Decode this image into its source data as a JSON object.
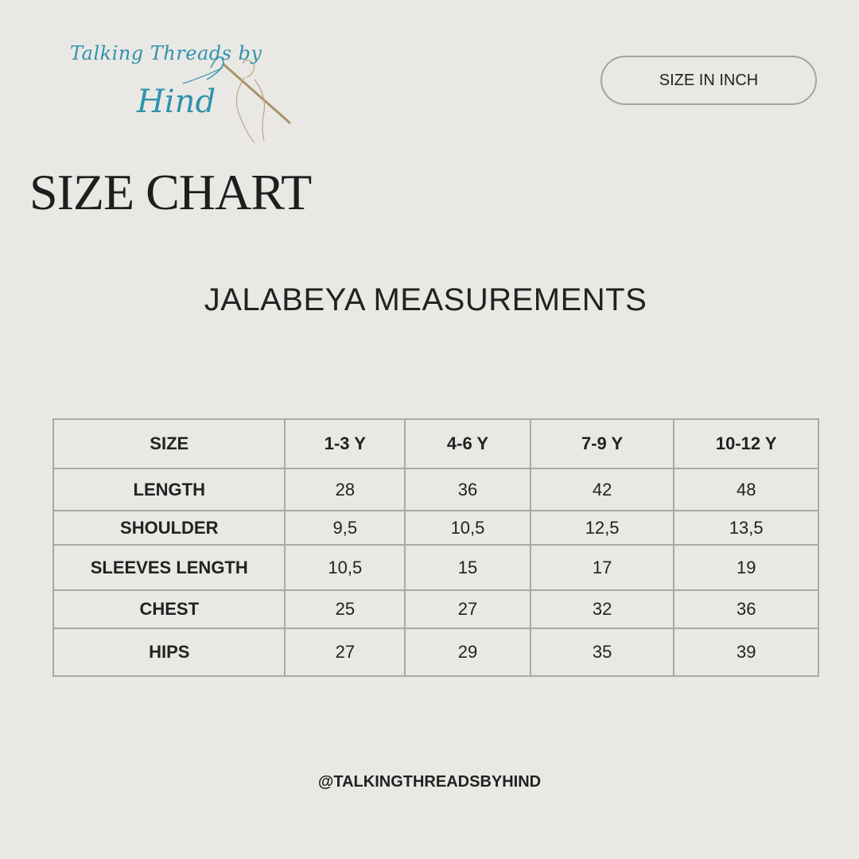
{
  "logo": {
    "line1": "Talking Threads by",
    "line2": "Hind"
  },
  "unit_button": {
    "label": "SIZE IN INCH"
  },
  "title": "SIZE CHART",
  "subtitle": "JALABEYA MEASUREMENTS",
  "table": {
    "headers": [
      "SIZE",
      "1-3 Y",
      "4-6 Y",
      "7-9 Y",
      "10-12 Y"
    ],
    "rows": [
      [
        "LENGTH",
        "28",
        "36",
        "42",
        "48"
      ],
      [
        "SHOULDER",
        "9,5",
        "10,5",
        "12,5",
        "13,5"
      ],
      [
        "SLEEVES LENGTH",
        "10,5",
        "15",
        "17",
        "19"
      ],
      [
        "CHEST",
        "25",
        "27",
        "32",
        "36"
      ],
      [
        "HIPS",
        "27",
        "29",
        "35",
        "39"
      ]
    ]
  },
  "footer": "@TALKINGTHREADSBYHIND",
  "colors": {
    "background": "#eae8e4",
    "logo_text": "#2f93ad",
    "logo_needle": "#a89468",
    "border": "#a9a9a9"
  }
}
